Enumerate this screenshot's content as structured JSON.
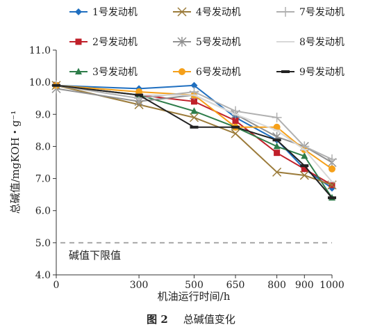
{
  "chart_data": {
    "type": "line",
    "title": "",
    "xlabel": "机油运行时间/h",
    "ylabel": "总碱值/mgKOH・g⁻¹",
    "categories": [
      "0",
      "300",
      "500",
      "650",
      "800",
      "900",
      "1000"
    ],
    "x": [
      0,
      300,
      500,
      650,
      800,
      900,
      1000
    ],
    "ylim": [
      4.0,
      11.0
    ],
    "yticks": [
      "4.0",
      "5.0",
      "6.0",
      "7.0",
      "8.0",
      "9.0",
      "10.0",
      "11.0"
    ],
    "grid": false,
    "legend_position": "top",
    "series": [
      {
        "name": "1号发动机",
        "color": "#1f6fc0",
        "marker": "diamond",
        "values": [
          9.9,
          9.8,
          9.9,
          8.9,
          8.2,
          7.3,
          6.7
        ]
      },
      {
        "name": "2号发动机",
        "color": "#c0202a",
        "marker": "square",
        "values": [
          9.9,
          9.6,
          9.4,
          8.8,
          7.8,
          7.3,
          6.8
        ]
      },
      {
        "name": "3号发动机",
        "color": "#2e7d4a",
        "marker": "triangle",
        "values": [
          9.9,
          9.6,
          9.1,
          8.6,
          8.0,
          7.7,
          6.4
        ]
      },
      {
        "name": "4号发动机",
        "color": "#9b7b3a",
        "marker": "x",
        "values": [
          9.9,
          9.3,
          8.9,
          8.4,
          7.2,
          7.1,
          6.8
        ]
      },
      {
        "name": "5号发动机",
        "color": "#909090",
        "marker": "star",
        "values": [
          9.8,
          9.4,
          9.6,
          9.0,
          8.3,
          8.0,
          7.5
        ]
      },
      {
        "name": "6号发动机",
        "color": "#f5a01a",
        "marker": "circle",
        "values": [
          9.9,
          9.7,
          9.6,
          8.6,
          8.6,
          7.9,
          7.3
        ]
      },
      {
        "name": "7号发动机",
        "color": "#b0b0b0",
        "marker": "plus",
        "values": [
          9.9,
          9.5,
          9.7,
          9.1,
          8.9,
          8.0,
          7.6
        ]
      },
      {
        "name": "8号发动机",
        "color": "#d8d8d8",
        "marker": "dash",
        "values": [
          9.9,
          9.6,
          9.6,
          9.0,
          8.5,
          7.9,
          6.9
        ]
      },
      {
        "name": "9号发动机",
        "color": "#222222",
        "marker": "bar",
        "values": [
          9.9,
          9.6,
          8.6,
          8.6,
          8.2,
          7.4,
          6.4
        ]
      }
    ],
    "reference_line": {
      "value": 5.0,
      "label": "碱值下限值",
      "color": "#a8a8a8",
      "style": "dashed"
    }
  },
  "caption": {
    "figure_number": "图 2",
    "text": "总碱值变化"
  }
}
